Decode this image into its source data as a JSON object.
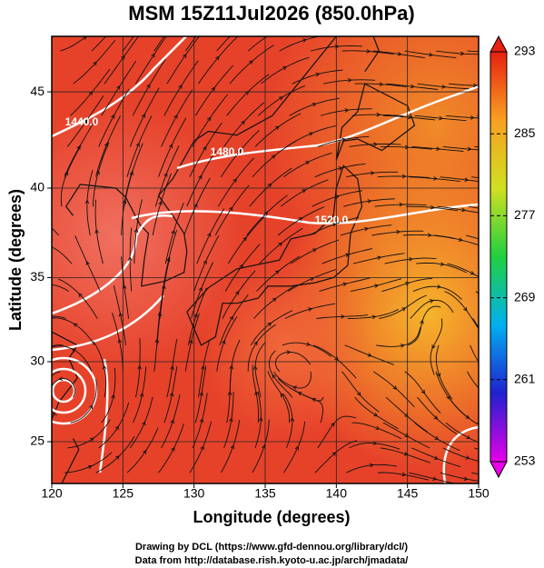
{
  "chart_data": {
    "type": "map",
    "title": "MSM 15Z11Jul2026 (850.0hPa)",
    "x_label": "Longitude (degrees)",
    "y_label": "Latitude  (degrees)",
    "projection": "mercator",
    "xlim": [
      120,
      150
    ],
    "ylim": [
      22.3,
      47.7
    ],
    "xticks": [
      120,
      125,
      130,
      135,
      140,
      145,
      150
    ],
    "yticks": [
      25,
      30,
      35,
      40,
      45
    ],
    "grid": true,
    "colorbar": {
      "lim": [
        253,
        293
      ],
      "ticks": [
        253,
        261,
        269,
        277,
        285,
        293
      ],
      "colors": [
        "#e800e8",
        "#2020d0",
        "#00b0f0",
        "#20d040",
        "#d0e020",
        "#f8a020",
        "#e82010"
      ]
    },
    "contour_labels": [
      "1440.0",
      "1480.0",
      "1520.0"
    ]
  },
  "footer": [
    "Drawing by DCL (https://www.gfd-dennou.org/library/dcl/)",
    "Data from http://database.rish.kyoto-u.ac.jp/arch/jmadata/"
  ]
}
